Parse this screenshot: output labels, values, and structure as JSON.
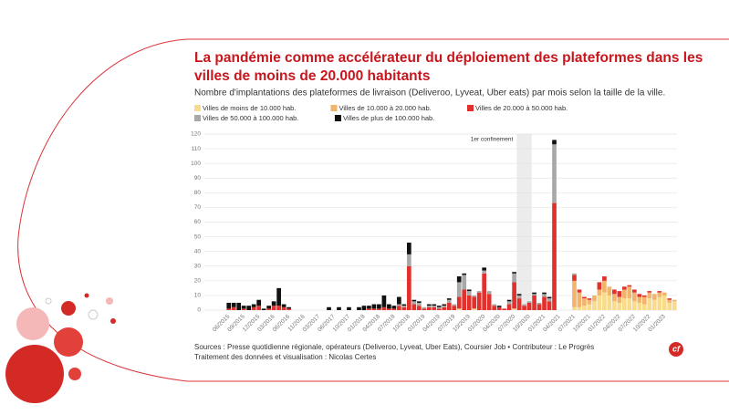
{
  "chart_data": {
    "type": "stacked_bar",
    "title": "La pandémie comme accélérateur du déploiement des plateformes dans les villes de moins de 20.000 habitants",
    "subtitle": "Nombre d'implantations des plateformes de livraison (Deliveroo, Lyveat, Uber eats) par mois selon la taille de la ville.",
    "annotation": "1er confinement",
    "source": "Sources : Presse quotidienne régionale, opérateurs (Deliveroo, Lyveat, Uber Eats), Coursier Job • Contributeur : Le Progrès",
    "credit": "Traitement des données et visualisation : Nicolas Certes",
    "logo": "cf",
    "categories": [
      "06/2015",
      null,
      null,
      "09/2015",
      null,
      null,
      "12/2015",
      null,
      null,
      "03/2016",
      null,
      null,
      "06/2016",
      null,
      null,
      "11/2016",
      null,
      null,
      "03/2017",
      null,
      null,
      "06/2017",
      null,
      null,
      "10/2017",
      null,
      null,
      "01/2018",
      null,
      null,
      "04/2018",
      null,
      null,
      "07/2018",
      null,
      null,
      "10/2018",
      null,
      null,
      "01/2019",
      null,
      null,
      "04/2019",
      null,
      null,
      "07/2019",
      null,
      null,
      "10/2019",
      null,
      null,
      "01/2020",
      null,
      null,
      "04/2020",
      null,
      null,
      "07/2020",
      null,
      null,
      "10/2020",
      null,
      null,
      "01/2021",
      null,
      null,
      "04/2021",
      null,
      null,
      "07/2021",
      null,
      null,
      "10/2021",
      null,
      null,
      "01/2022",
      null,
      null,
      "04/2022",
      null,
      null,
      "07/2022",
      null,
      null,
      "10/2022",
      null,
      null,
      "01/2023",
      null,
      null
    ],
    "series": [
      {
        "name": "Villes de moins de 10.000 hab.",
        "color": "#f8dc8c",
        "values": [
          0,
          0,
          0,
          0,
          0,
          0,
          0,
          0,
          0,
          0,
          0,
          0,
          0,
          0,
          0,
          0,
          0,
          0,
          0,
          0,
          0,
          0,
          0,
          0,
          0,
          0,
          0,
          0,
          0,
          0,
          0,
          0,
          0,
          0,
          0,
          0,
          0,
          0,
          0,
          0,
          0,
          0,
          0,
          0,
          0,
          0,
          1,
          0,
          0,
          1,
          0,
          0,
          0,
          0,
          0,
          0,
          0,
          1,
          0,
          0,
          0,
          0,
          0,
          0,
          0,
          0,
          0,
          0,
          0,
          2,
          2,
          3,
          4,
          6,
          10,
          12,
          10,
          6,
          5,
          8,
          8,
          6,
          5,
          4,
          8,
          7,
          9,
          10,
          5,
          6
        ]
      },
      {
        "name": "Villes de 10.000 à 20.000 hab.",
        "color": "#f2b36b",
        "values": [
          0,
          0,
          0,
          0,
          0,
          0,
          0,
          0,
          0,
          0,
          0,
          0,
          0,
          0,
          0,
          0,
          0,
          0,
          0,
          0,
          0,
          0,
          0,
          0,
          0,
          0,
          0,
          0,
          0,
          0,
          0,
          0,
          0,
          0,
          0,
          0,
          0,
          0,
          0,
          0,
          0,
          0,
          0,
          0,
          0,
          0,
          0,
          0,
          0,
          0,
          0,
          0,
          0,
          0,
          0,
          0,
          0,
          0,
          0,
          0,
          0,
          0,
          0,
          0,
          0,
          0,
          0,
          0,
          0,
          18,
          10,
          5,
          3,
          4,
          4,
          8,
          6,
          5,
          4,
          6,
          8,
          6,
          4,
          5,
          4,
          4,
          3,
          2,
          2,
          1
        ]
      },
      {
        "name": "Villes de 20.000 à 50.000 hab.",
        "color": "#e2302d",
        "values": [
          1,
          2,
          0,
          1,
          0,
          2,
          3,
          0,
          1,
          3,
          3,
          2,
          1,
          0,
          0,
          0,
          0,
          0,
          0,
          0,
          0,
          0,
          0,
          0,
          0,
          0,
          0,
          0,
          1,
          1,
          1,
          2,
          1,
          1,
          3,
          2,
          30,
          4,
          3,
          1,
          2,
          2,
          1,
          2,
          5,
          3,
          8,
          14,
          10,
          8,
          12,
          25,
          11,
          3,
          2,
          1,
          4,
          18,
          8,
          3,
          5,
          10,
          4,
          9,
          6,
          73,
          0,
          0,
          0,
          4,
          2,
          1,
          1,
          0,
          5,
          3,
          0,
          3,
          4,
          2,
          1,
          2,
          2,
          1,
          1,
          0,
          1,
          0,
          1,
          0
        ]
      },
      {
        "name": "Villes de 50.000 à 100.000 hab.",
        "color": "#a8a8a8",
        "values": [
          0,
          0,
          0,
          0,
          0,
          0,
          0,
          0,
          0,
          0,
          0,
          0,
          0,
          0,
          0,
          0,
          0,
          0,
          0,
          0,
          0,
          0,
          0,
          0,
          0,
          0,
          0,
          0,
          0,
          0,
          0,
          0,
          0,
          0,
          1,
          1,
          8,
          2,
          2,
          1,
          1,
          1,
          1,
          1,
          2,
          1,
          10,
          10,
          3,
          1,
          1,
          2,
          2,
          1,
          0,
          0,
          2,
          6,
          2,
          1,
          1,
          1,
          1,
          2,
          2,
          40,
          0,
          0,
          0,
          1,
          0,
          0,
          0,
          0,
          0,
          0,
          0,
          0,
          0,
          0,
          0,
          0,
          0,
          0,
          0,
          0,
          0,
          0,
          0,
          0
        ]
      },
      {
        "name": "Villes de plus de 100.000 hab.",
        "color": "#111111",
        "values": [
          4,
          3,
          5,
          2,
          3,
          2,
          4,
          1,
          2,
          3,
          12,
          2,
          1,
          0,
          0,
          0,
          0,
          0,
          0,
          0,
          2,
          0,
          2,
          0,
          2,
          0,
          2,
          3,
          2,
          3,
          3,
          8,
          3,
          2,
          5,
          1,
          8,
          1,
          1,
          0,
          1,
          1,
          1,
          1,
          1,
          0,
          4,
          1,
          1,
          0,
          0,
          2,
          0,
          0,
          1,
          0,
          1,
          1,
          1,
          0,
          0,
          1,
          0,
          1,
          1,
          3,
          0,
          0,
          0,
          0,
          0,
          0,
          0,
          0,
          0,
          0,
          0,
          0,
          0,
          0,
          0,
          0,
          0,
          0,
          0,
          0,
          0,
          0,
          0,
          0
        ]
      }
    ],
    "ylim": [
      0,
      120
    ],
    "yticks": [
      0,
      10,
      20,
      30,
      40,
      50,
      60,
      70,
      80,
      90,
      100,
      110,
      120
    ],
    "grid": true
  }
}
